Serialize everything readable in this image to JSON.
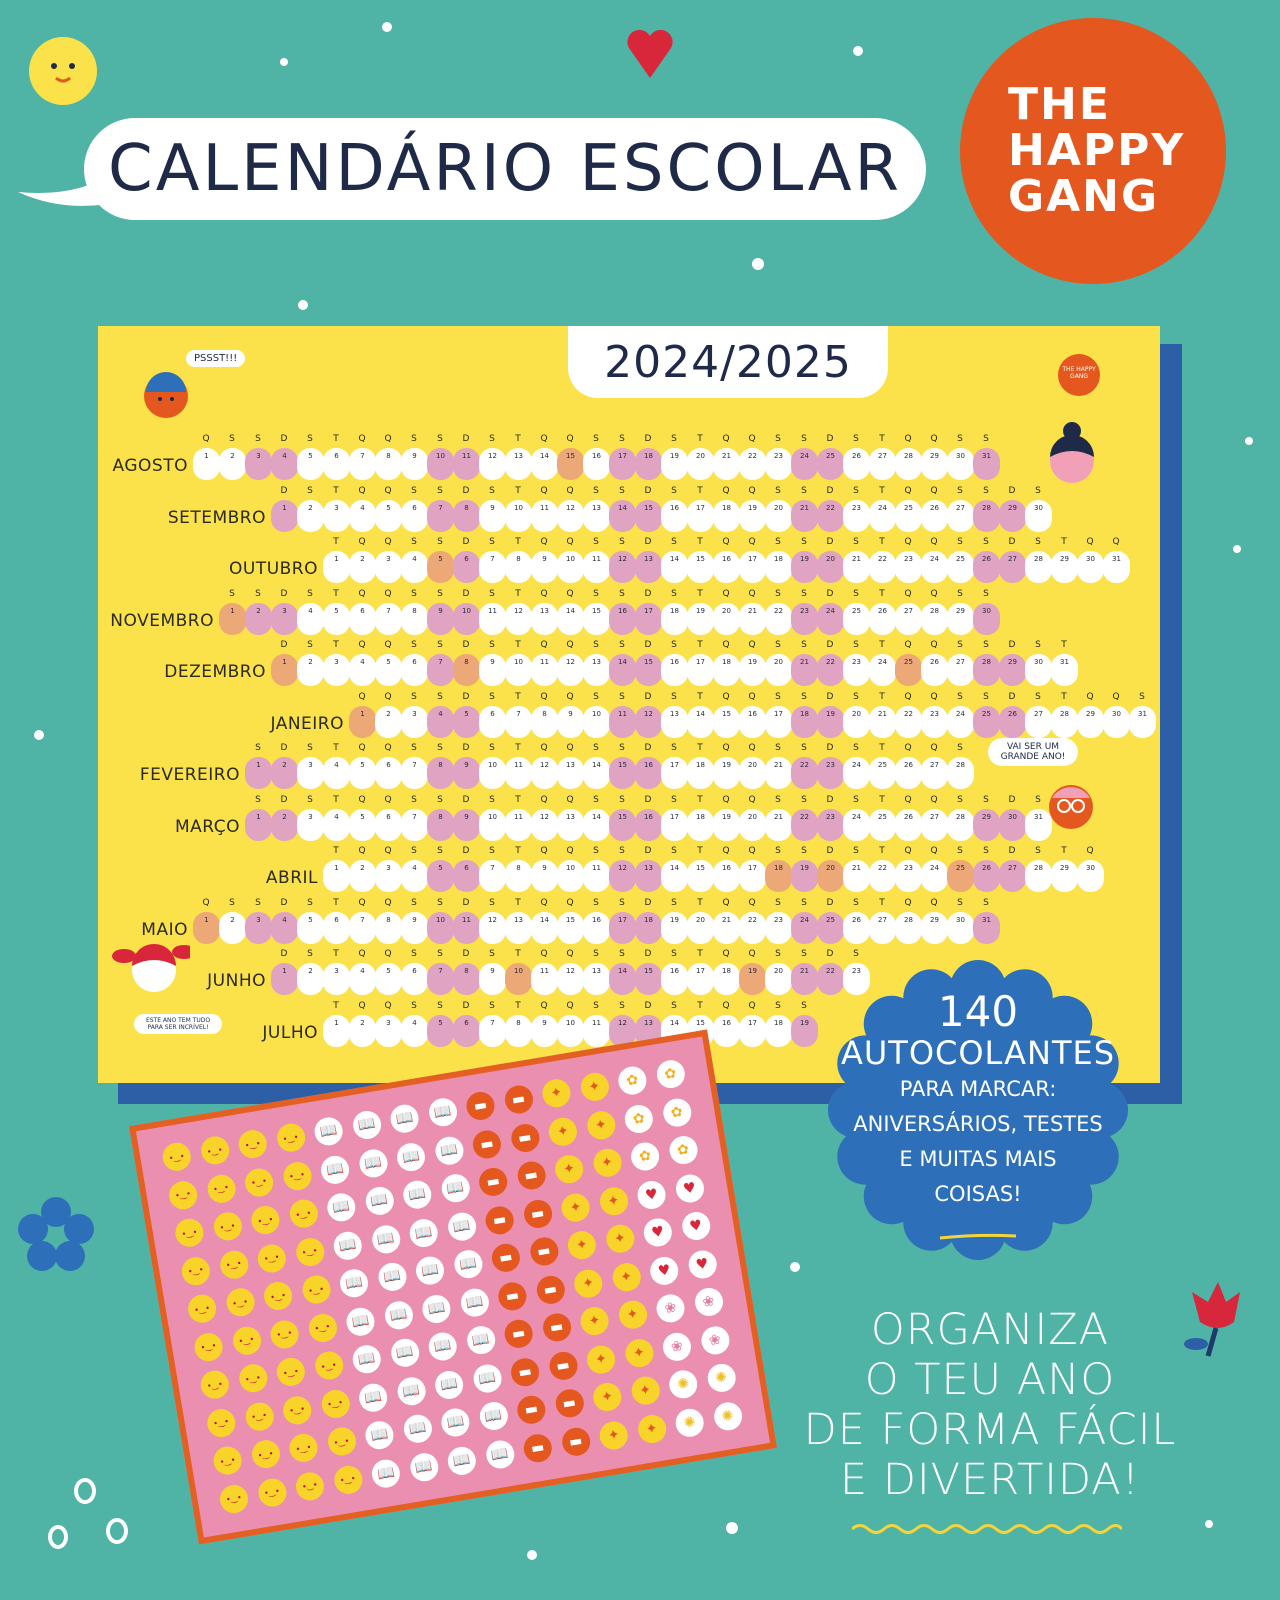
{
  "header": {
    "title": "CALENDÁRIO ESCOLAR",
    "logo_lines": [
      "THE",
      "HAPPY",
      "GANG"
    ]
  },
  "poster": {
    "year": "2024/2025",
    "small_logo": "THE HAPPY GANG",
    "speech_top": "PSSST!!!",
    "speech_right": "VAI SER UM GRANDE ANO!",
    "speech_left": "ESTE ANO TEM TUDO PARA SER INCRÍVEL!",
    "weekday_letters": [
      "Q",
      "S",
      "S",
      "D",
      "S",
      "T",
      "Q"
    ],
    "months": [
      {
        "name": "AGOSTO",
        "start_col": 0,
        "days": 31,
        "holidays": [
          15
        ]
      },
      {
        "name": "SETEMBRO",
        "start_col": 3,
        "days": 30,
        "holidays": []
      },
      {
        "name": "OUTUBRO",
        "start_col": 5,
        "days": 31,
        "holidays": [
          5
        ]
      },
      {
        "name": "NOVEMBRO",
        "start_col": 1,
        "days": 30,
        "holidays": [
          1
        ]
      },
      {
        "name": "DEZEMBRO",
        "start_col": 3,
        "days": 31,
        "holidays": [
          1,
          8,
          25
        ]
      },
      {
        "name": "JANEIRO",
        "start_col": 6,
        "days": 31,
        "holidays": [
          1
        ]
      },
      {
        "name": "FEVEREIRO",
        "start_col": 2,
        "days": 28,
        "holidays": []
      },
      {
        "name": "MARÇO",
        "start_col": 2,
        "days": 31,
        "holidays": []
      },
      {
        "name": "ABRIL",
        "start_col": 5,
        "days": 30,
        "holidays": [
          18,
          20,
          25
        ]
      },
      {
        "name": "MAIO",
        "start_col": 0,
        "days": 31,
        "holidays": [
          1
        ]
      },
      {
        "name": "JUNHO",
        "start_col": 3,
        "days": 30,
        "holidays": [
          10,
          19
        ]
      },
      {
        "name": "JULHO",
        "start_col": 5,
        "days": 31,
        "holidays": []
      }
    ],
    "colors": {
      "background": "#fbe24a",
      "weekday": "#ffffff",
      "weekend": "#e0a4c2",
      "holiday": "#eda878"
    }
  },
  "stickers": {
    "columns": [
      "face",
      "face",
      "face",
      "face",
      "book",
      "book",
      "book",
      "book",
      "cake",
      "cake",
      "party",
      "party",
      "misc",
      "misc"
    ],
    "misc_rows": [
      "flower",
      "flower",
      "flower",
      "heart",
      "heart",
      "heart",
      "tulip",
      "tulip",
      "sun",
      "sun"
    ],
    "rows": 10
  },
  "badge": {
    "count": "140",
    "title": "AUTOCOLANTES",
    "lines": [
      "PARA MARCAR:",
      "ANIVERSÁRIOS, TESTES",
      "E MUITAS MAIS",
      "COISAS!"
    ]
  },
  "slogan": {
    "lines": [
      "ORGANIZA",
      "O TEU ANO",
      "DE FORMA FÁCIL",
      "E DIVERTIDA!"
    ]
  },
  "colors": {
    "page": "#4fb3a6",
    "logo": "#e4581f",
    "badge": "#2d6fb8",
    "sheet": "#ea8fb0",
    "navy": "#1e2a48"
  }
}
